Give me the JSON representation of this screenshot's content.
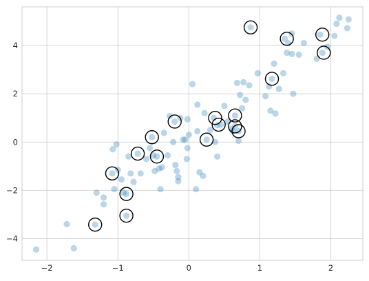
{
  "chart_data": {
    "type": "scatter",
    "title": "",
    "xlabel": "",
    "ylabel": "",
    "xlim": [
      -2.35,
      2.45
    ],
    "ylim": [
      -4.9,
      5.6
    ],
    "grid": true,
    "xticks": [
      -2,
      -1,
      0,
      1,
      2
    ],
    "yticks": [
      -4,
      -2,
      0,
      2,
      4
    ],
    "xtick_labels": [
      "−2",
      "−1",
      "0",
      "1",
      "2"
    ],
    "ytick_labels": [
      "−4",
      "−2",
      "0",
      "2",
      "4"
    ],
    "colors": {
      "points": "#1f77b4",
      "points_alpha": 0.3,
      "circle_edge": "#000000",
      "grid": "#cfcfcf",
      "frame": "#cccccc"
    },
    "series": [
      {
        "role": "all points",
        "points": [
          [
            -2.15,
            -4.45
          ],
          [
            -1.72,
            -3.4
          ],
          [
            -1.62,
            -4.4
          ],
          [
            -1.32,
            -3.42
          ],
          [
            -1.3,
            -2.1
          ],
          [
            -1.2,
            -2.3
          ],
          [
            -1.2,
            -2.58
          ],
          [
            -1.08,
            -1.3
          ],
          [
            -1.07,
            -0.3
          ],
          [
            -1.05,
            -1.95
          ],
          [
            -1.02,
            -0.1
          ],
          [
            -1.0,
            -1.15
          ],
          [
            -0.95,
            -1.55
          ],
          [
            -0.92,
            -2.1
          ],
          [
            -0.88,
            -2.15
          ],
          [
            -0.88,
            -3.05
          ],
          [
            -0.85,
            -0.6
          ],
          [
            -0.82,
            -1.3
          ],
          [
            -0.78,
            -1.65
          ],
          [
            -0.72,
            -0.48
          ],
          [
            -0.68,
            -1.3
          ],
          [
            -0.6,
            -0.7
          ],
          [
            -0.55,
            -0.25
          ],
          [
            -0.52,
            0.2
          ],
          [
            -0.5,
            -0.55
          ],
          [
            -0.48,
            -1.2
          ],
          [
            -0.45,
            -0.6
          ],
          [
            -0.42,
            -1.1
          ],
          [
            -0.4,
            -1.95
          ],
          [
            -0.38,
            -1.05
          ],
          [
            -0.35,
            0.38
          ],
          [
            -0.3,
            -0.55
          ],
          [
            -0.27,
            1.08
          ],
          [
            -0.22,
            0.0
          ],
          [
            -0.2,
            0.85
          ],
          [
            -0.19,
            -0.95
          ],
          [
            -0.17,
            -1.2
          ],
          [
            -0.15,
            -1.45
          ],
          [
            -0.15,
            -1.62
          ],
          [
            -0.12,
            1.0
          ],
          [
            -0.08,
            0.1
          ],
          [
            -0.05,
            0.1
          ],
          [
            -0.03,
            -0.7
          ],
          [
            -0.02,
            0.95
          ],
          [
            -0.02,
            -0.25
          ],
          [
            0.0,
            0.3
          ],
          [
            0.05,
            2.4
          ],
          [
            0.1,
            -1.95
          ],
          [
            0.12,
            0.45
          ],
          [
            0.12,
            1.55
          ],
          [
            0.15,
            -1.25
          ],
          [
            0.2,
            -1.4
          ],
          [
            0.22,
            1.2
          ],
          [
            0.25,
            0.1
          ],
          [
            0.3,
            0.5
          ],
          [
            0.35,
            1.0
          ],
          [
            0.37,
            0.0
          ],
          [
            0.4,
            0.7
          ],
          [
            0.4,
            -0.6
          ],
          [
            0.45,
            0.72
          ],
          [
            0.5,
            1.5
          ],
          [
            0.55,
            0.85
          ],
          [
            0.6,
            0.55
          ],
          [
            0.62,
            0.45
          ],
          [
            0.65,
            0.65
          ],
          [
            0.65,
            1.1
          ],
          [
            0.68,
            2.45
          ],
          [
            0.7,
            0.45
          ],
          [
            0.7,
            0.05
          ],
          [
            0.72,
            1.95
          ],
          [
            0.75,
            1.4
          ],
          [
            0.77,
            2.48
          ],
          [
            0.8,
            1.75
          ],
          [
            0.85,
            2.35
          ],
          [
            0.87,
            4.75
          ],
          [
            0.97,
            2.85
          ],
          [
            1.08,
            1.9
          ],
          [
            1.13,
            2.3
          ],
          [
            1.15,
            1.3
          ],
          [
            1.17,
            2.62
          ],
          [
            1.2,
            3.25
          ],
          [
            1.22,
            1.18
          ],
          [
            1.27,
            2.2
          ],
          [
            1.33,
            2.85
          ],
          [
            1.35,
            4.28
          ],
          [
            1.38,
            3.7
          ],
          [
            1.4,
            4.1
          ],
          [
            1.45,
            4.5
          ],
          [
            1.45,
            3.65
          ],
          [
            1.47,
            2.0
          ],
          [
            1.55,
            3.62
          ],
          [
            1.62,
            4.1
          ],
          [
            1.8,
            3.45
          ],
          [
            1.85,
            4.45
          ],
          [
            1.88,
            3.7
          ],
          [
            1.95,
            3.95
          ],
          [
            2.05,
            4.4
          ],
          [
            2.08,
            4.9
          ],
          [
            2.12,
            5.15
          ],
          [
            2.23,
            4.72
          ],
          [
            2.25,
            5.08
          ]
        ]
      },
      {
        "role": "circled points",
        "points": [
          [
            -1.32,
            -3.42
          ],
          [
            -1.08,
            -1.3
          ],
          [
            -0.88,
            -2.15
          ],
          [
            -0.88,
            -3.05
          ],
          [
            -0.72,
            -0.48
          ],
          [
            -0.52,
            0.2
          ],
          [
            -0.45,
            -0.6
          ],
          [
            -0.2,
            0.85
          ],
          [
            0.25,
            0.1
          ],
          [
            0.37,
            1.0
          ],
          [
            0.42,
            0.72
          ],
          [
            0.65,
            0.65
          ],
          [
            0.65,
            1.1
          ],
          [
            0.7,
            0.45
          ],
          [
            0.87,
            4.75
          ],
          [
            1.17,
            2.62
          ],
          [
            1.38,
            4.28
          ],
          [
            1.88,
            4.45
          ],
          [
            1.9,
            3.7
          ]
        ]
      }
    ]
  }
}
